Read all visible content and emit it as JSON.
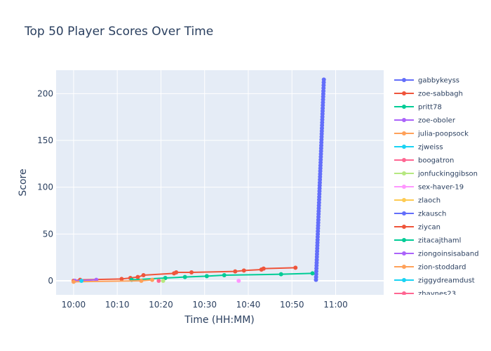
{
  "chart_data": {
    "type": "line",
    "title": "Top 50 Player Scores Over Time",
    "xlabel": "Time (HH:MM)",
    "ylabel": "Score",
    "x_unit": "minutes since 10:00",
    "xlim": [
      -4,
      71
    ],
    "ylim": [
      -15,
      225
    ],
    "xticks": [
      {
        "value": 0,
        "label": "10:00"
      },
      {
        "value": 10,
        "label": "10:10"
      },
      {
        "value": 20,
        "label": "10:20"
      },
      {
        "value": 30,
        "label": "10:30"
      },
      {
        "value": 40,
        "label": "10:40"
      },
      {
        "value": 50,
        "label": "10:50"
      },
      {
        "value": 60,
        "label": "11:00"
      }
    ],
    "yticks": [
      0,
      50,
      100,
      150,
      200
    ],
    "grid": true,
    "legend_position": "right",
    "series": [
      {
        "name": "gabbykeyss",
        "color": "#636efa",
        "x": [
          55.5,
          57.3
        ],
        "y": [
          1,
          215
        ],
        "dense": true
      },
      {
        "name": "zoe-sabbagh",
        "color": "#EF553B",
        "x": [
          0,
          1.5,
          11,
          13,
          14.7,
          16,
          23,
          23.5,
          27,
          37,
          39,
          43,
          43.5,
          50.8
        ],
        "y": [
          0,
          1,
          2,
          3,
          4,
          6,
          8,
          9,
          9,
          10,
          11,
          12,
          13,
          14
        ]
      },
      {
        "name": "pritt78",
        "color": "#00cc96",
        "x": [
          13.3,
          21,
          25.5,
          30.5,
          34.5,
          47.5,
          54.7
        ],
        "y": [
          1,
          3,
          4,
          5,
          6,
          7,
          8
        ]
      },
      {
        "name": "zoe-oboler",
        "color": "#ab63fa",
        "x": [
          0.3,
          5.2
        ],
        "y": [
          0,
          1
        ]
      },
      {
        "name": "julia-poopsock",
        "color": "#FFA15A",
        "x": [
          0,
          15.5,
          18
        ],
        "y": [
          -1,
          0,
          1
        ]
      },
      {
        "name": "zjweiss",
        "color": "#19d3f3",
        "x": [
          1.8
        ],
        "y": [
          0
        ]
      },
      {
        "name": "boogatron",
        "color": "#FF6692",
        "x": [
          19.5
        ],
        "y": [
          0
        ]
      },
      {
        "name": "jonfuckinggibson",
        "color": "#B6E880",
        "x": [
          20.5
        ],
        "y": [
          0
        ]
      },
      {
        "name": "sex-haver-19",
        "color": "#FF97FF",
        "x": [
          37.8
        ],
        "y": [
          0
        ]
      },
      {
        "name": "zlaoch",
        "color": "#FECB52",
        "x": [],
        "y": []
      },
      {
        "name": "zkausch",
        "color": "#636efa",
        "x": [],
        "y": []
      },
      {
        "name": "ziycan",
        "color": "#EF553B",
        "x": [],
        "y": []
      },
      {
        "name": "zitacajthaml",
        "color": "#00cc96",
        "x": [],
        "y": []
      },
      {
        "name": "ziongoinsisaband",
        "color": "#ab63fa",
        "x": [],
        "y": []
      },
      {
        "name": "zion-stoddard",
        "color": "#FFA15A",
        "x": [],
        "y": []
      },
      {
        "name": "ziggydreamdust",
        "color": "#19d3f3",
        "x": [],
        "y": []
      },
      {
        "name": "zhaynes23",
        "color": "#FF6692",
        "x": [],
        "y": []
      }
    ]
  }
}
